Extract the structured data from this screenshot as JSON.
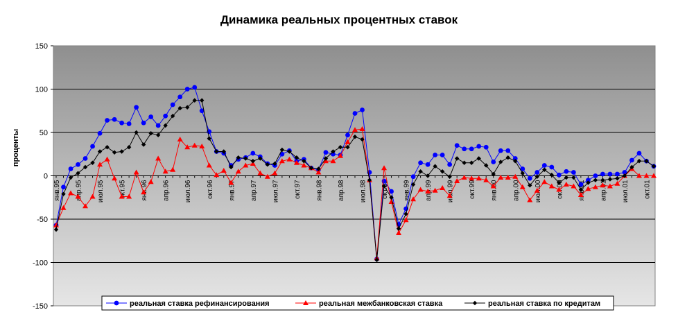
{
  "chart_data": {
    "type": "line",
    "title": "Динамика реальных процентных ставок",
    "ylabel": "проценты",
    "xlabel": "",
    "ylim": [
      -150,
      150
    ],
    "yticks": [
      150,
      100,
      50,
      0,
      -50,
      -100,
      -150
    ],
    "grid": true,
    "legend_position": "bottom",
    "x_tick_labels": [
      {
        "index": 0,
        "label": "янв.95"
      },
      {
        "index": 3,
        "label": "апр.95"
      },
      {
        "index": 6,
        "label": "июл.95"
      },
      {
        "index": 9,
        "label": "окт.95"
      },
      {
        "index": 12,
        "label": "янв.96"
      },
      {
        "index": 15,
        "label": "апр.96"
      },
      {
        "index": 18,
        "label": "июл.96"
      },
      {
        "index": 21,
        "label": "окт.96"
      },
      {
        "index": 24,
        "label": "янв.97"
      },
      {
        "index": 27,
        "label": "апр.97"
      },
      {
        "index": 30,
        "label": "июл.97"
      },
      {
        "index": 33,
        "label": "окт.97"
      },
      {
        "index": 36,
        "label": "янв.98"
      },
      {
        "index": 39,
        "label": "апр.98"
      },
      {
        "index": 42,
        "label": "июл.98"
      },
      {
        "index": 45,
        "label": "окт.98"
      },
      {
        "index": 48,
        "label": "янв.99"
      },
      {
        "index": 51,
        "label": "апр.99"
      },
      {
        "index": 54,
        "label": "июл.99"
      },
      {
        "index": 57,
        "label": "окт.99"
      },
      {
        "index": 60,
        "label": "янв.00"
      },
      {
        "index": 63,
        "label": "апр.00"
      },
      {
        "index": 66,
        "label": "июл.00"
      },
      {
        "index": 69,
        "label": "окт.00"
      },
      {
        "index": 72,
        "label": "янв.01"
      },
      {
        "index": 75,
        "label": "апр.01"
      },
      {
        "index": 78,
        "label": "июл.01"
      },
      {
        "index": 81,
        "label": "окт.01"
      }
    ],
    "series": [
      {
        "name": "реальная ставка рефинансирования",
        "color": "#0000ff",
        "marker": "circle",
        "values": [
          -57,
          -13,
          8,
          13,
          20,
          34,
          49,
          64,
          65,
          61,
          60,
          79,
          61,
          68,
          58,
          69,
          82,
          91,
          100,
          102,
          75,
          51,
          28,
          26,
          12,
          19,
          21,
          26,
          22,
          14,
          12,
          25,
          29,
          17,
          19,
          9,
          7,
          27,
          25,
          24,
          47,
          72,
          76,
          4,
          -96,
          -6,
          -18,
          -56,
          -38,
          -1,
          15,
          13,
          24,
          24,
          13,
          35,
          31,
          31,
          34,
          33,
          16,
          29,
          29,
          20,
          8,
          -3,
          4,
          12,
          10,
          1,
          5,
          4,
          -10,
          -5,
          0,
          2,
          2,
          2,
          4,
          18,
          26,
          17,
          11
        ]
      },
      {
        "name": "реальная межбанковская ставка",
        "color": "#ff0000",
        "marker": "triangle",
        "values": [
          -57,
          -37,
          -20,
          -24,
          -35,
          -24,
          13,
          19,
          -3,
          -24,
          -24,
          4,
          -19,
          -7,
          20,
          5,
          7,
          42,
          33,
          35,
          34,
          12,
          1,
          6,
          -8,
          5,
          12,
          14,
          3,
          -1,
          3,
          17,
          19,
          15,
          12,
          9,
          4,
          17,
          17,
          23,
          39,
          53,
          54,
          -5,
          -95,
          9,
          -30,
          -66,
          -51,
          -27,
          -16,
          -18,
          -17,
          -14,
          -23,
          -6,
          -2,
          -3,
          -3,
          -5,
          -12,
          -2,
          -2,
          -1,
          -13,
          -28,
          -17,
          -7,
          -12,
          -16,
          -10,
          -12,
          -22,
          -15,
          -13,
          -11,
          -12,
          -9,
          0,
          8,
          0,
          0,
          0
        ]
      },
      {
        "name": "реальная ставка по кредитам",
        "color": "#000000",
        "marker": "diamond",
        "values": [
          -62,
          -21,
          -2,
          3,
          10,
          15,
          28,
          33,
          27,
          28,
          33,
          50,
          36,
          49,
          47,
          58,
          69,
          78,
          79,
          87,
          87,
          43,
          28,
          28,
          10,
          21,
          20,
          17,
          20,
          13,
          14,
          30,
          28,
          21,
          17,
          9,
          8,
          20,
          28,
          33,
          33,
          45,
          42,
          -5,
          -97,
          -12,
          -25,
          -61,
          -44,
          -10,
          5,
          0,
          11,
          5,
          -1,
          20,
          15,
          15,
          20,
          12,
          2,
          16,
          21,
          17,
          3,
          -11,
          -1,
          7,
          1,
          -8,
          -2,
          -2,
          -16,
          -8,
          -5,
          -5,
          -4,
          -3,
          0,
          10,
          17,
          17,
          11
        ]
      }
    ]
  }
}
